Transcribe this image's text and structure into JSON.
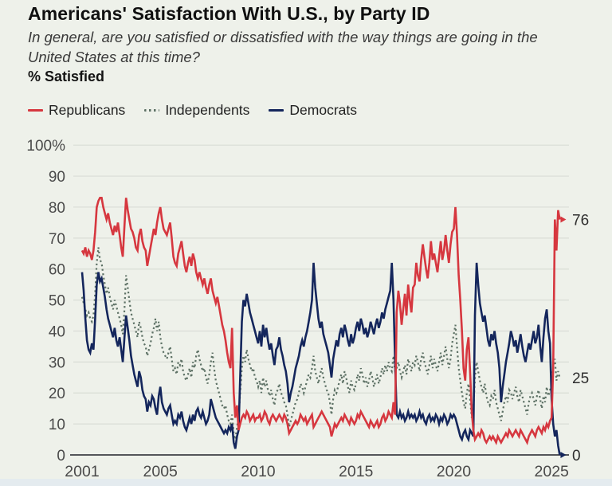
{
  "header": {
    "title": "Americans' Satisfaction With U.S., by Party ID",
    "subtitle": "In general, are you satisfied or dissatisfied with the way things are going in the United States at this time?",
    "metric_label": "% Satisfied"
  },
  "legend": {
    "items": [
      {
        "label": "Republicans",
        "color": "#d6373f",
        "style": "solid"
      },
      {
        "label": "Independents",
        "color": "#5d7165",
        "style": "dotted"
      },
      {
        "label": "Democrats",
        "color": "#14265c",
        "style": "solid"
      }
    ]
  },
  "colors": {
    "background": "#eef1ea",
    "gridline": "#d9ddd6",
    "axis": "#54565a",
    "tick_text": "#4a4a4a",
    "end_label_text": "#2e2e2e",
    "bottom_strip": "#e4ebef"
  },
  "chart_data": {
    "type": "line",
    "title": "Americans' Satisfaction With U.S., by Party ID",
    "xlabel": "",
    "ylabel": "% Satisfied",
    "grid": true,
    "legend_position": "top",
    "ylim": [
      0,
      100
    ],
    "x_start_year": 2001,
    "points_per_year": 12,
    "x_ticks": [
      2001,
      2005,
      2010,
      2015,
      2020,
      2025
    ],
    "y_ticks": [
      0,
      10,
      20,
      30,
      40,
      50,
      60,
      70,
      80,
      90,
      100
    ],
    "y_top_tick_label": "100%",
    "series": [
      {
        "name": "Independents",
        "color": "#5d7165",
        "dash": "dotted",
        "width": 2.2,
        "arrow": false,
        "end_label": "25",
        "values": [
          51,
          49,
          47,
          45,
          46,
          44,
          43,
          45,
          52,
          62,
          67,
          63,
          62,
          58,
          55,
          52,
          54,
          51,
          49,
          47,
          50,
          48,
          46,
          44,
          42,
          39,
          47,
          58,
          54,
          50,
          46,
          44,
          42,
          40,
          38,
          43,
          41,
          38,
          36,
          35,
          32,
          34,
          36,
          39,
          41,
          44,
          40,
          43,
          38,
          35,
          33,
          32,
          31,
          33,
          35,
          31,
          27,
          28,
          26,
          30,
          29,
          31,
          27,
          25,
          24,
          26,
          28,
          25,
          30,
          28,
          32,
          34,
          31,
          29,
          27,
          28,
          25,
          23,
          26,
          30,
          33,
          28,
          24,
          22,
          20,
          18,
          16,
          15,
          16,
          13,
          11,
          10,
          13,
          7,
          5,
          9,
          12,
          20,
          28,
          32,
          30,
          34,
          31,
          29,
          27,
          28,
          25,
          24,
          22,
          24,
          20,
          25,
          22,
          24,
          21,
          19,
          21,
          18,
          16,
          20,
          21,
          23,
          20,
          19,
          17,
          16,
          13,
          9,
          11,
          13,
          15,
          17,
          18,
          20,
          23,
          22,
          20,
          22,
          24,
          26,
          25,
          28,
          32,
          27,
          25,
          23,
          26,
          28,
          25,
          23,
          21,
          20,
          17,
          13,
          18,
          21,
          20,
          22,
          24,
          26,
          23,
          27,
          25,
          22,
          20,
          24,
          22,
          21,
          23,
          26,
          24,
          28,
          26,
          23,
          25,
          22,
          24,
          27,
          25,
          22,
          24,
          26,
          23,
          25,
          28,
          26,
          29,
          27,
          30,
          28,
          27,
          32,
          27,
          28,
          30,
          27,
          25,
          27,
          29,
          26,
          31,
          29,
          27,
          30,
          29,
          32,
          30,
          27,
          31,
          33,
          30,
          28,
          26,
          29,
          32,
          28,
          31,
          29,
          27,
          30,
          33,
          29,
          32,
          35,
          31,
          28,
          31,
          36,
          39,
          42,
          35,
          28,
          24,
          20,
          17,
          15,
          20,
          23,
          18,
          12,
          14,
          25,
          30,
          27,
          24,
          22,
          20,
          23,
          19,
          17,
          16,
          19,
          18,
          21,
          17,
          15,
          13,
          11,
          14,
          17,
          19,
          17,
          21,
          20,
          18,
          20,
          22,
          19,
          17,
          21,
          19,
          17,
          15,
          13,
          17,
          19,
          20,
          18,
          16,
          19,
          21,
          18,
          15,
          19,
          17,
          22,
          19,
          21,
          22,
          28,
          31,
          24,
          27,
          25
        ]
      },
      {
        "name": "Democrats",
        "color": "#14265c",
        "dash": "solid",
        "width": 2.6,
        "arrow": true,
        "end_label": "0",
        "values": [
          59,
          53,
          44,
          37,
          34,
          33,
          36,
          34,
          44,
          55,
          59,
          56,
          57,
          54,
          51,
          47,
          44,
          42,
          40,
          38,
          41,
          37,
          35,
          38,
          34,
          30,
          38,
          45,
          41,
          37,
          32,
          29,
          26,
          24,
          22,
          27,
          25,
          21,
          19,
          18,
          14,
          17,
          16,
          19,
          18,
          15,
          13,
          19,
          22,
          17,
          15,
          14,
          13,
          15,
          16,
          13,
          10,
          11,
          10,
          13,
          12,
          14,
          11,
          9,
          8,
          10,
          12,
          10,
          13,
          11,
          14,
          15,
          13,
          12,
          14,
          12,
          10,
          11,
          13,
          18,
          16,
          14,
          12,
          11,
          10,
          9,
          8,
          7,
          8,
          7,
          9,
          8,
          10,
          4,
          2,
          6,
          8,
          25,
          43,
          50,
          48,
          52,
          49,
          46,
          44,
          42,
          40,
          38,
          36,
          40,
          35,
          42,
          38,
          41,
          37,
          34,
          36,
          32,
          29,
          34,
          35,
          38,
          34,
          32,
          29,
          27,
          23,
          17,
          20,
          22,
          25,
          28,
          30,
          32,
          35,
          37,
          35,
          38,
          40,
          43,
          46,
          50,
          62,
          54,
          49,
          44,
          41,
          43,
          39,
          37,
          35,
          33,
          29,
          25,
          31,
          34,
          37,
          35,
          39,
          41,
          38,
          42,
          40,
          37,
          35,
          39,
          36,
          38,
          41,
          43,
          40,
          44,
          42,
          39,
          41,
          38,
          40,
          43,
          41,
          39,
          42,
          44,
          41,
          43,
          46,
          44,
          47,
          49,
          51,
          53,
          62,
          50,
          30,
          13,
          12,
          14,
          12,
          13,
          11,
          12,
          14,
          12,
          13,
          12,
          13,
          11,
          12,
          14,
          12,
          13,
          11,
          10,
          12,
          13,
          11,
          12,
          11,
          13,
          12,
          10,
          12,
          11,
          13,
          12,
          10,
          11,
          13,
          12,
          13,
          12,
          10,
          8,
          6,
          5,
          7,
          8,
          6,
          5,
          8,
          7,
          6,
          45,
          62,
          55,
          49,
          46,
          43,
          45,
          41,
          37,
          35,
          39,
          37,
          40,
          36,
          33,
          28,
          17,
          22,
          26,
          30,
          33,
          36,
          40,
          38,
          35,
          37,
          33,
          36,
          39,
          35,
          32,
          30,
          33,
          36,
          34,
          37,
          40,
          36,
          38,
          42,
          35,
          30,
          38,
          44,
          47,
          40,
          36,
          18,
          10,
          6,
          8,
          3,
          0
        ]
      },
      {
        "name": "Republicans",
        "color": "#d6373f",
        "dash": "solid",
        "width": 2.6,
        "arrow": true,
        "end_label": "76",
        "values": [
          66,
          65,
          67,
          64,
          66,
          65,
          63,
          66,
          72,
          80,
          82,
          83,
          83,
          80,
          78,
          76,
          78,
          75,
          73,
          71,
          74,
          72,
          75,
          71,
          67,
          64,
          74,
          83,
          79,
          76,
          73,
          72,
          70,
          67,
          66,
          71,
          73,
          69,
          67,
          66,
          61,
          64,
          67,
          70,
          73,
          71,
          75,
          78,
          80,
          76,
          73,
          72,
          71,
          73,
          75,
          70,
          64,
          62,
          61,
          65,
          67,
          69,
          65,
          61,
          59,
          62,
          64,
          61,
          65,
          63,
          59,
          57,
          59,
          57,
          55,
          57,
          54,
          52,
          55,
          57,
          53,
          51,
          49,
          51,
          48,
          45,
          42,
          40,
          37,
          33,
          30,
          28,
          41,
          20,
          12,
          16,
          8,
          10,
          12,
          13,
          12,
          14,
          13,
          11,
          12,
          13,
          11,
          12,
          12,
          13,
          11,
          12,
          14,
          13,
          11,
          10,
          12,
          13,
          12,
          11,
          12,
          13,
          12,
          11,
          13,
          12,
          10,
          7,
          8,
          9,
          10,
          11,
          10,
          11,
          13,
          12,
          11,
          12,
          10,
          11,
          12,
          13,
          9,
          10,
          11,
          12,
          13,
          14,
          13,
          12,
          11,
          10,
          9,
          6,
          8,
          10,
          9,
          10,
          11,
          12,
          11,
          13,
          12,
          11,
          10,
          12,
          11,
          10,
          11,
          13,
          12,
          14,
          13,
          12,
          11,
          10,
          9,
          11,
          10,
          9,
          10,
          11,
          9,
          10,
          12,
          13,
          11,
          12,
          14,
          13,
          12,
          17,
          13,
          46,
          53,
          49,
          42,
          47,
          52,
          45,
          55,
          50,
          46,
          54,
          55,
          62,
          58,
          56,
          63,
          68,
          64,
          60,
          57,
          62,
          69,
          63,
          65,
          62,
          59,
          64,
          69,
          63,
          66,
          71,
          66,
          62,
          68,
          72,
          73,
          80,
          71,
          58,
          50,
          40,
          28,
          24,
          34,
          38,
          27,
          14,
          8,
          5,
          6,
          7,
          6,
          8,
          7,
          5,
          4,
          5,
          6,
          5,
          6,
          5,
          4,
          6,
          5,
          4,
          5,
          6,
          7,
          6,
          8,
          7,
          6,
          7,
          8,
          7,
          6,
          8,
          7,
          6,
          5,
          4,
          6,
          7,
          8,
          7,
          6,
          8,
          9,
          8,
          7,
          9,
          8,
          10,
          9,
          11,
          12,
          28,
          76,
          66,
          79,
          76
        ]
      }
    ]
  }
}
